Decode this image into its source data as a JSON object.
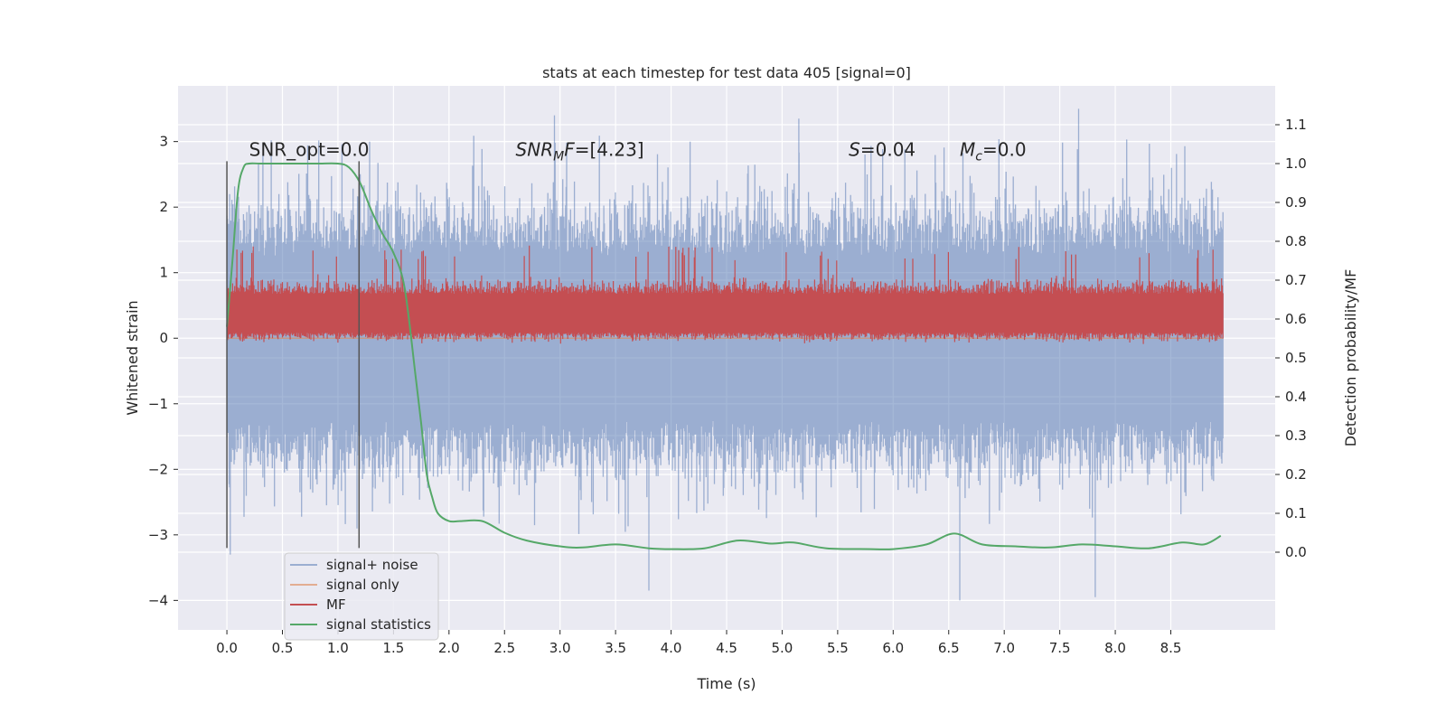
{
  "chart_data": {
    "type": "line",
    "title": "stats at each timestep for test data 405 [signal=0]",
    "xlabel": "Time (s)",
    "ylabel_left": "Whitened strain",
    "ylabel_right": "Detection probability/MF",
    "xlim": [
      -0.44,
      9.44
    ],
    "ylim_left": [
      -4.45,
      3.85
    ],
    "ylim_right": [
      -0.2,
      1.2
    ],
    "x_ticks": [
      0.0,
      0.5,
      1.0,
      1.5,
      2.0,
      2.5,
      3.0,
      3.5,
      4.0,
      4.5,
      5.0,
      5.5,
      6.0,
      6.5,
      7.0,
      7.5,
      8.0,
      8.5
    ],
    "x_tick_labels": [
      "0.0",
      "0.5",
      "1.0",
      "1.5",
      "2.0",
      "2.5",
      "3.0",
      "3.5",
      "4.0",
      "4.5",
      "5.0",
      "5.5",
      "6.0",
      "6.5",
      "7.0",
      "7.5",
      "8.0",
      "8.5"
    ],
    "y_left_ticks": [
      -4,
      -3,
      -2,
      -1,
      0,
      1,
      2,
      3
    ],
    "y_left_tick_labels": [
      "−4",
      "−3",
      "−2",
      "−1",
      "0",
      "1",
      "2",
      "3"
    ],
    "y_right_ticks": [
      0.0,
      0.1,
      0.2,
      0.3,
      0.4,
      0.5,
      0.6,
      0.7,
      0.8,
      0.9,
      1.0,
      1.1
    ],
    "y_right_tick_labels": [
      "0.0",
      "0.1",
      "0.2",
      "0.3",
      "0.4",
      "0.5",
      "0.6",
      "0.7",
      "0.8",
      "0.9",
      "1.0",
      "1.1"
    ],
    "series": [
      {
        "name": "signal+ noise",
        "axis": "left",
        "color": "#4c72b0",
        "alpha": 0.5,
        "x_range": [
          0.0,
          8.97
        ],
        "band": [
          -1.5,
          1.5
        ],
        "extremes": {
          "max": 3.5,
          "min": -4.0
        }
      },
      {
        "name": "signal only",
        "axis": "left",
        "color": "#dd8452",
        "alpha": 0.6,
        "x": [
          0.0,
          8.97
        ],
        "y": [
          0.0,
          0.0
        ]
      },
      {
        "name": "MF",
        "axis": "right",
        "color": "#c44e52",
        "x_range": [
          0.0,
          8.97
        ],
        "band": [
          0.55,
          0.7
        ],
        "peaks": [
          0.75,
          0.8
        ]
      },
      {
        "name": "signal statistics",
        "axis": "right",
        "color": "#55a868",
        "x": [
          0.0,
          0.05,
          0.1,
          0.15,
          0.2,
          0.3,
          0.5,
          0.8,
          1.0,
          1.1,
          1.2,
          1.3,
          1.4,
          1.5,
          1.6,
          1.7,
          1.75,
          1.8,
          1.85,
          1.9,
          2.0,
          2.1,
          2.3,
          2.5,
          2.7,
          3.0,
          3.2,
          3.5,
          3.8,
          4.0,
          4.3,
          4.6,
          4.9,
          5.1,
          5.4,
          5.8,
          6.0,
          6.3,
          6.55,
          6.8,
          7.1,
          7.4,
          7.7,
          8.0,
          8.3,
          8.6,
          8.8,
          8.95
        ],
        "y": [
          0.58,
          0.75,
          0.93,
          0.99,
          1.0,
          1.0,
          1.0,
          1.0,
          1.0,
          0.99,
          0.95,
          0.88,
          0.82,
          0.77,
          0.68,
          0.45,
          0.33,
          0.2,
          0.14,
          0.1,
          0.08,
          0.08,
          0.08,
          0.05,
          0.03,
          0.015,
          0.012,
          0.02,
          0.01,
          0.008,
          0.01,
          0.03,
          0.022,
          0.025,
          0.01,
          0.008,
          0.008,
          0.02,
          0.048,
          0.02,
          0.015,
          0.012,
          0.02,
          0.015,
          0.01,
          0.025,
          0.02,
          0.042
        ]
      }
    ],
    "vlines": [
      {
        "x": 0.0,
        "y_range": [
          -3.2,
          2.7
        ]
      },
      {
        "x": 1.19,
        "y_range": [
          -3.2,
          2.7
        ]
      }
    ],
    "annotations": [
      {
        "x": 0.2,
        "y": 2.78,
        "parts": [
          {
            "text": "SNR_opt=0.0",
            "style": "normal"
          }
        ]
      },
      {
        "x": 2.6,
        "y": 2.78,
        "parts": [
          {
            "text": "SNR",
            "style": "italic"
          },
          {
            "text": "M",
            "style": "italic-sub"
          },
          {
            "text": "F",
            "style": "italic"
          },
          {
            "text": "=[4.23]",
            "style": "normal"
          }
        ]
      },
      {
        "x": 5.6,
        "y": 2.78,
        "parts": [
          {
            "text": "S",
            "style": "italic"
          },
          {
            "text": "=0.04",
            "style": "normal"
          }
        ]
      },
      {
        "x": 6.6,
        "y": 2.78,
        "parts": [
          {
            "text": "M",
            "style": "italic"
          },
          {
            "text": "c",
            "style": "italic-sub"
          },
          {
            "text": "=0.0",
            "style": "normal"
          }
        ]
      }
    ],
    "legend": {
      "placement": "lower-left",
      "entries": [
        {
          "label": "signal+ noise",
          "color": "#4c72b0",
          "alpha": 0.5
        },
        {
          "label": "signal only",
          "color": "#dd8452",
          "alpha": 0.6
        },
        {
          "label": "MF",
          "color": "#c44e52",
          "alpha": 1
        },
        {
          "label": "signal statistics",
          "color": "#55a868",
          "alpha": 1
        }
      ]
    },
    "grid": true,
    "style": {
      "background": "#eaeaf2",
      "gridColor": "#ffffff"
    }
  }
}
